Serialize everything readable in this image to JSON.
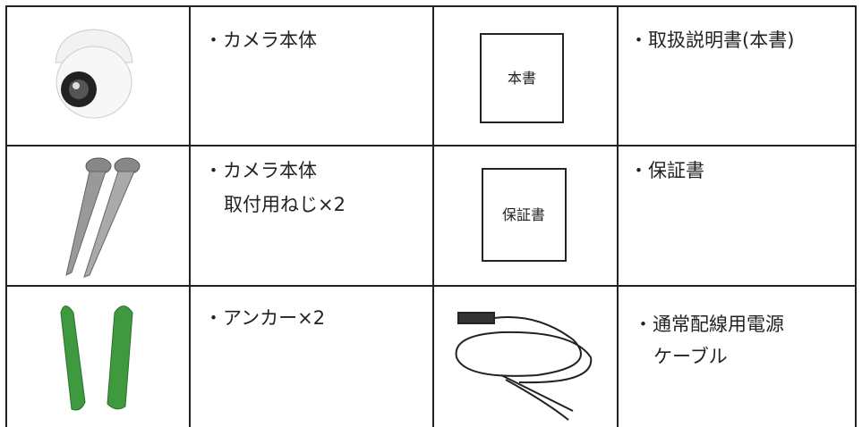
{
  "table": {
    "rows": [
      {
        "item": [
          "・カメラ本体"
        ],
        "box": "本書",
        "item2": [
          "・取扱説明書(本書)"
        ]
      },
      {
        "item": [
          "・カメラ本体",
          "取付用ねじ×2"
        ],
        "box": "保証書",
        "item2": [
          "・保証書"
        ]
      },
      {
        "item": [
          "・アンカー×2"
        ],
        "item2": [
          "・通常配線用電源",
          "ケーブル"
        ]
      }
    ]
  }
}
